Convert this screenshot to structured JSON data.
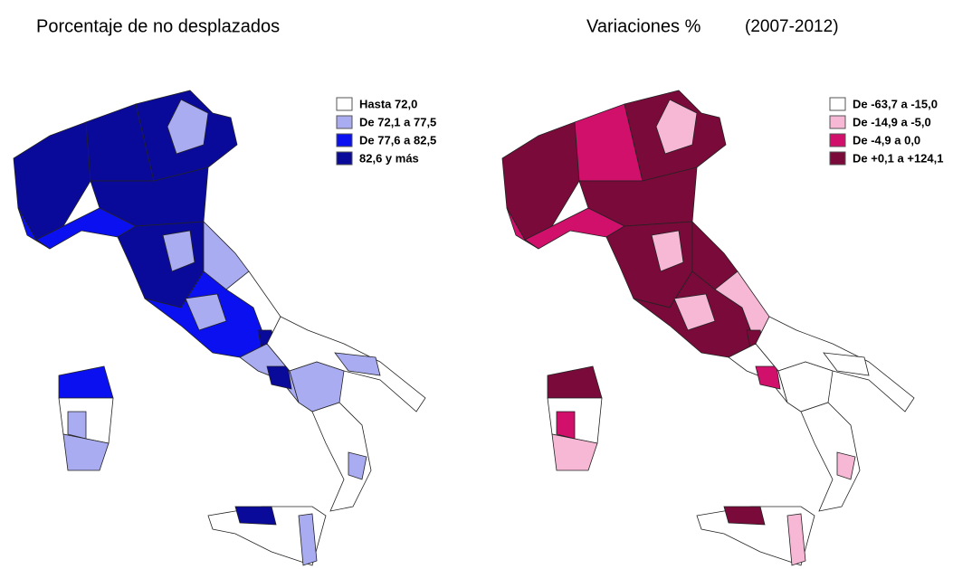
{
  "maps": [
    {
      "title": "Porcentaje de no desplazados",
      "legend": [
        {
          "label": "Hasta 72,0",
          "color": "#ffffff"
        },
        {
          "label": "De 72,1 a 77,5",
          "color": "#a9acf0"
        },
        {
          "label": "De 77,6 a 82,5",
          "color": "#0a10f0"
        },
        {
          "label": "82,6 y más",
          "color": "#0a0a9a"
        }
      ]
    },
    {
      "title": "Variaciones %",
      "subtitle": "(2007-2012)",
      "legend": [
        {
          "label": "De -63,7 a -15,0",
          "color": "#ffffff"
        },
        {
          "label": "De -14,9 a -5,0",
          "color": "#f7b8d6"
        },
        {
          "label": "De -4,9 a 0,0",
          "color": "#d0106a"
        },
        {
          "label": "De +0,1 a +124,1",
          "color": "#7a0a3a"
        }
      ]
    }
  ]
}
